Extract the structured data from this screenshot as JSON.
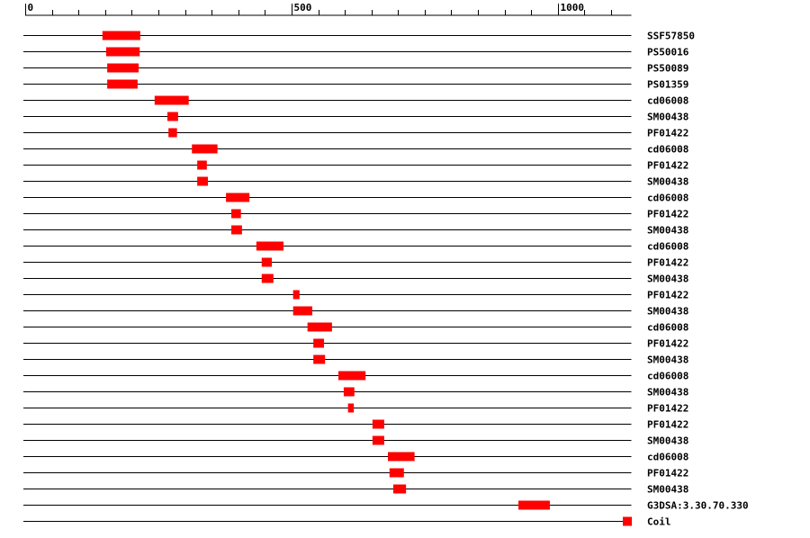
{
  "chart_data": {
    "type": "domains",
    "categories": [
      "SSF57850",
      "PS50016",
      "PS50089",
      "PS01359",
      "cd06008",
      "SM00438",
      "PF01422",
      "cd06008",
      "PF01422",
      "SM00438",
      "cd06008",
      "PF01422",
      "SM00438",
      "cd06008",
      "PF01422",
      "SM00438",
      "PF01422",
      "SM00438",
      "cd06008",
      "PF01422",
      "SM00438",
      "cd06008",
      "SM00438",
      "PF01422",
      "PF01422",
      "SM00438",
      "cd06008",
      "PF01422",
      "SM00438",
      "G3DSA:3.30.70.330",
      "Coil"
    ],
    "starts": [
      145,
      152,
      154,
      154,
      243,
      267,
      269,
      313,
      323,
      323,
      377,
      387,
      387,
      434,
      444,
      444,
      503,
      503,
      530,
      541,
      541,
      588,
      598,
      606,
      652,
      652,
      681,
      684,
      691,
      926,
      1122
    ],
    "ends": [
      216,
      215,
      213,
      211,
      307,
      287,
      285,
      361,
      341,
      343,
      421,
      405,
      407,
      485,
      463,
      466,
      515,
      539,
      576,
      561,
      563,
      639,
      618,
      617,
      674,
      674,
      731,
      711,
      715,
      985,
      1139
    ],
    "color": "#ff0000",
    "xlim": [
      0,
      1138
    ],
    "xticks": [
      0,
      500,
      1000
    ],
    "minor_xticks": [
      50,
      100,
      150,
      200,
      250,
      300,
      350,
      400,
      450,
      550,
      600,
      650,
      700,
      750,
      800,
      850,
      900,
      950,
      1050,
      1100
    ]
  }
}
